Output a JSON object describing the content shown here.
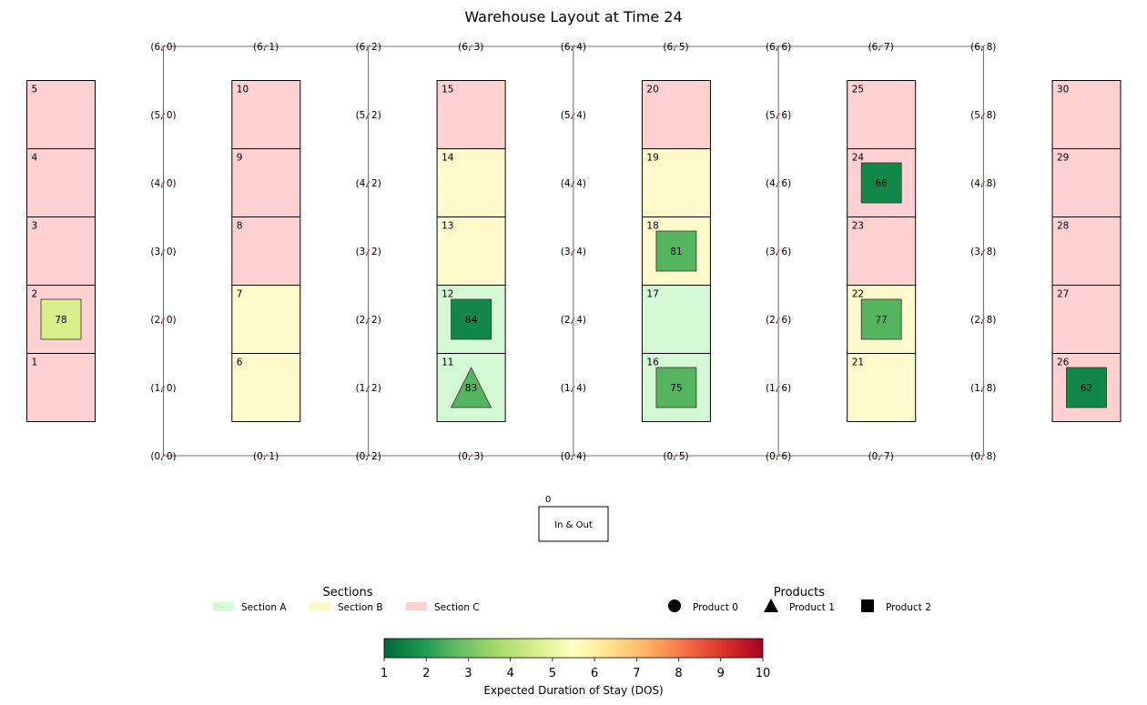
{
  "title": "Warehouse Layout at Time 24",
  "colors": {
    "section_a": "#d4f7d4",
    "section_b": "#fff9cc",
    "section_c": "#ffd1d1",
    "grid_line": "#404040",
    "node_marker": "#e03030"
  },
  "grid_nodes": {
    "rows": [
      0,
      1,
      2,
      3,
      4,
      5,
      6
    ],
    "cols": [
      0,
      1,
      2,
      3,
      4,
      5,
      6,
      7,
      8
    ],
    "aisle_cols": [
      0,
      2,
      4,
      6,
      8
    ]
  },
  "racks": [
    {
      "column": 0,
      "locations": [
        {
          "id": "1",
          "section": "C"
        },
        {
          "id": "2",
          "section": "C",
          "product": {
            "shape": "square",
            "value": "78",
            "dos": 4.6
          }
        },
        {
          "id": "3",
          "section": "C"
        },
        {
          "id": "4",
          "section": "C"
        },
        {
          "id": "5",
          "section": "C"
        }
      ]
    },
    {
      "column": 1,
      "locations": [
        {
          "id": "6",
          "section": "B"
        },
        {
          "id": "7",
          "section": "B"
        },
        {
          "id": "8",
          "section": "C"
        },
        {
          "id": "9",
          "section": "C"
        },
        {
          "id": "10",
          "section": "C"
        }
      ]
    },
    {
      "column": 2,
      "locations": [
        {
          "id": "11",
          "section": "A",
          "product": {
            "shape": "triangle",
            "value": "83",
            "dos": 2.6
          }
        },
        {
          "id": "12",
          "section": "A",
          "product": {
            "shape": "square",
            "value": "84",
            "dos": 1.6
          }
        },
        {
          "id": "13",
          "section": "B"
        },
        {
          "id": "14",
          "section": "B"
        },
        {
          "id": "15",
          "section": "C"
        }
      ]
    },
    {
      "column": 3,
      "locations": [
        {
          "id": "16",
          "section": "A",
          "product": {
            "shape": "square",
            "value": "75",
            "dos": 2.6
          }
        },
        {
          "id": "17",
          "section": "A"
        },
        {
          "id": "18",
          "section": "B",
          "product": {
            "shape": "square",
            "value": "81",
            "dos": 2.6
          }
        },
        {
          "id": "19",
          "section": "B"
        },
        {
          "id": "20",
          "section": "C"
        }
      ]
    },
    {
      "column": 4,
      "locations": [
        {
          "id": "21",
          "section": "B"
        },
        {
          "id": "22",
          "section": "B",
          "product": {
            "shape": "square",
            "value": "77",
            "dos": 2.6
          }
        },
        {
          "id": "23",
          "section": "C"
        },
        {
          "id": "24",
          "section": "C",
          "product": {
            "shape": "square",
            "value": "66",
            "dos": 1.6
          }
        },
        {
          "id": "25",
          "section": "C"
        }
      ]
    },
    {
      "column": 5,
      "locations": [
        {
          "id": "26",
          "section": "C",
          "product": {
            "shape": "square",
            "value": "62",
            "dos": 1.6
          }
        },
        {
          "id": "27",
          "section": "C"
        },
        {
          "id": "28",
          "section": "C"
        },
        {
          "id": "29",
          "section": "C"
        },
        {
          "id": "30",
          "section": "C"
        }
      ]
    }
  ],
  "io_station": {
    "id": "0",
    "label": "In & Out"
  },
  "legend_sections": {
    "title": "Sections",
    "items": [
      {
        "label": "Section A",
        "section": "A"
      },
      {
        "label": "Section B",
        "section": "B"
      },
      {
        "label": "Section C",
        "section": "C"
      }
    ]
  },
  "legend_products": {
    "title": "Products",
    "items": [
      {
        "label": "Product 0",
        "shape": "circle"
      },
      {
        "label": "Product 1",
        "shape": "triangle"
      },
      {
        "label": "Product 2",
        "shape": "square"
      }
    ]
  },
  "colorbar": {
    "label": "Expected Duration of Stay (DOS)",
    "min": 1,
    "max": 10,
    "ticks": [
      "1",
      "2",
      "3",
      "4",
      "5",
      "6",
      "7",
      "8",
      "9",
      "10"
    ],
    "colormap": [
      "#006837",
      "#1a9850",
      "#66bd63",
      "#a6d96a",
      "#d9ef8b",
      "#ffffbf",
      "#fee08b",
      "#fdae61",
      "#f46d43",
      "#d73027",
      "#a50026"
    ]
  }
}
